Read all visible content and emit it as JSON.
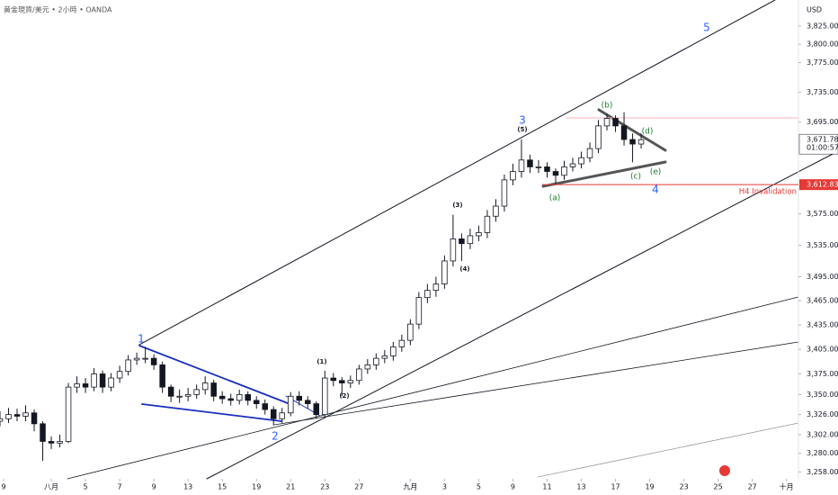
{
  "chart_data": {
    "type": "candlestick",
    "title": "黄金現貨/美元 • 2小時 • OANDA",
    "currency": "USD",
    "log_scale": true,
    "grid": false,
    "up_color": "#ffffff",
    "down_color": "#131722",
    "edge_color": "#131722",
    "xlim": [
      -3,
      43.7
    ],
    "ylim": [
      3250,
      3861
    ],
    "xticks": [
      {
        "value": -3,
        "label": "9"
      },
      {
        "value": 0,
        "label": "八月"
      },
      {
        "value": 2,
        "label": "5"
      },
      {
        "value": 4,
        "label": "7"
      },
      {
        "value": 6,
        "label": "9"
      },
      {
        "value": 8,
        "label": "13"
      },
      {
        "value": 10,
        "label": "15"
      },
      {
        "value": 12,
        "label": "19"
      },
      {
        "value": 14,
        "label": "21"
      },
      {
        "value": 16,
        "label": "23"
      },
      {
        "value": 18,
        "label": "27"
      },
      {
        "value": 21,
        "label": "九月"
      },
      {
        "value": 23,
        "label": "3"
      },
      {
        "value": 25,
        "label": "5"
      },
      {
        "value": 27,
        "label": "9"
      },
      {
        "value": 29,
        "label": "11"
      },
      {
        "value": 31,
        "label": "13"
      },
      {
        "value": 33,
        "label": "17"
      },
      {
        "value": 35,
        "label": "19"
      },
      {
        "value": 37,
        "label": "23"
      },
      {
        "value": 39,
        "label": "25"
      },
      {
        "value": 41,
        "label": "27"
      },
      {
        "value": 43,
        "label": "十月"
      }
    ],
    "yticks": [
      {
        "value": 3825,
        "label": "3,825.000"
      },
      {
        "value": 3800,
        "label": "3,800.000"
      },
      {
        "value": 3775,
        "label": "3,775.000"
      },
      {
        "value": 3735,
        "label": "3,735.000"
      },
      {
        "value": 3695,
        "label": "3,695.000"
      },
      {
        "value": 3575,
        "label": "3,575.000"
      },
      {
        "value": 3535,
        "label": "3,535.000"
      },
      {
        "value": 3495,
        "label": "3,495.000"
      },
      {
        "value": 3465,
        "label": "3,465.000"
      },
      {
        "value": 3435,
        "label": "3,435.000"
      },
      {
        "value": 3405,
        "label": "3,405.000"
      },
      {
        "value": 3375,
        "label": "3,375.000"
      },
      {
        "value": 3350,
        "label": "3,350.000"
      },
      {
        "value": 3326,
        "label": "3,326.000"
      },
      {
        "value": 3302,
        "label": "3,302.000"
      },
      {
        "value": 3280,
        "label": "3,280.000"
      },
      {
        "value": 3258,
        "label": "3,258.000"
      }
    ],
    "x": [
      -3,
      -2.5,
      -2,
      -1.5,
      -1,
      -0.5,
      0,
      0.5,
      1,
      1.5,
      2,
      2.5,
      3,
      3.5,
      4,
      4.5,
      5,
      5.5,
      6,
      6.5,
      7,
      7.5,
      8,
      8.5,
      9,
      9.5,
      10,
      10.5,
      11,
      11.5,
      12,
      12.5,
      13,
      13.5,
      14,
      14.5,
      15,
      15.5,
      16,
      16.5,
      17,
      17.5,
      18,
      18.5,
      19,
      19.5,
      20,
      20.5,
      21,
      21.5,
      22,
      22.5,
      23,
      23.5,
      24,
      24.5,
      25,
      25.5,
      26,
      26.5,
      27,
      27.5,
      28,
      28.5,
      29,
      29.5,
      30,
      30.5,
      31,
      31.5,
      32,
      32.5,
      33,
      33.5,
      34,
      34.5
    ],
    "open": [
      3318,
      3321,
      3326,
      3324,
      3328,
      3315,
      3294,
      3292,
      3294,
      3359,
      3363,
      3359,
      3375,
      3359,
      3370,
      3378,
      3392,
      3394,
      3394,
      3386,
      3359,
      3348,
      3348,
      3350,
      3356,
      3364,
      3348,
      3345,
      3343,
      3350,
      3343,
      3339,
      3332,
      3321,
      3328,
      3348,
      3343,
      3339,
      3326,
      3370,
      3367,
      3364,
      3367,
      3381,
      3386,
      3394,
      3397,
      3408,
      3416,
      3436,
      3469,
      3478,
      3486,
      3515,
      3543,
      3537,
      3547,
      3551,
      3572,
      3585,
      3619,
      3630,
      3645,
      3636,
      3636,
      3630,
      3625,
      3636,
      3640,
      3648,
      3660,
      3690,
      3700,
      3690,
      3672,
      3666
    ],
    "high": [
      3330,
      3334,
      3333,
      3337,
      3332,
      3318,
      3300,
      3302,
      3364,
      3372,
      3370,
      3382,
      3379,
      3376,
      3385,
      3398,
      3401,
      3408,
      3399,
      3390,
      3362,
      3356,
      3358,
      3362,
      3372,
      3368,
      3354,
      3351,
      3356,
      3354,
      3348,
      3344,
      3336,
      3334,
      3353,
      3354,
      3348,
      3342,
      3379,
      3376,
      3371,
      3373,
      3386,
      3393,
      3400,
      3404,
      3414,
      3423,
      3442,
      3476,
      3486,
      3495,
      3522,
      3574,
      3550,
      3556,
      3560,
      3580,
      3594,
      3626,
      3640,
      3672,
      3652,
      3645,
      3642,
      3634,
      3644,
      3648,
      3656,
      3668,
      3698,
      3706,
      3704,
      3708,
      3680,
      3680
    ],
    "low": [
      3312,
      3316,
      3318,
      3318,
      3306,
      3271,
      3285,
      3287,
      3292,
      3352,
      3352,
      3354,
      3352,
      3354,
      3364,
      3373,
      3386,
      3388,
      3380,
      3352,
      3341,
      3340,
      3342,
      3345,
      3350,
      3342,
      3339,
      3337,
      3338,
      3337,
      3333,
      3326,
      3313,
      3316,
      3324,
      3337,
      3333,
      3321,
      3322,
      3360,
      3348,
      3358,
      3362,
      3375,
      3380,
      3388,
      3391,
      3402,
      3410,
      3430,
      3462,
      3470,
      3480,
      3508,
      3515,
      3530,
      3540,
      3544,
      3565,
      3578,
      3612,
      3622,
      3628,
      3628,
      3622,
      3613,
      3619,
      3630,
      3634,
      3642,
      3654,
      3684,
      3682,
      3664,
      3642,
      3660
    ],
    "close": [
      3321,
      3326,
      3324,
      3328,
      3315,
      3294,
      3292,
      3294,
      3359,
      3363,
      3359,
      3375,
      3359,
      3370,
      3378,
      3392,
      3394,
      3394,
      3386,
      3359,
      3348,
      3348,
      3350,
      3356,
      3364,
      3348,
      3345,
      3343,
      3350,
      3343,
      3339,
      3332,
      3321,
      3328,
      3348,
      3343,
      3339,
      3326,
      3370,
      3367,
      3364,
      3367,
      3381,
      3386,
      3394,
      3397,
      3408,
      3416,
      3436,
      3469,
      3478,
      3486,
      3515,
      3543,
      3537,
      3547,
      3551,
      3572,
      3585,
      3619,
      3630,
      3645,
      3636,
      3636,
      3630,
      3625,
      3636,
      3640,
      3648,
      3660,
      3690,
      3700,
      3690,
      3672,
      3666,
      3671.785
    ],
    "last_price": {
      "value": 3671.785,
      "label": "3,671.785"
    },
    "countdown": "01:00:57",
    "invalidation": {
      "value": 3612.835,
      "label": "3,612.835",
      "text": "H4 Invalidation"
    },
    "annotations": [
      "1",
      "2",
      "3",
      "4",
      "5",
      "(1)",
      "(2)",
      "(3)",
      "(4)",
      "(5)",
      "(a)",
      "(b)",
      "(c)",
      "(d)",
      "(e)"
    ]
  }
}
